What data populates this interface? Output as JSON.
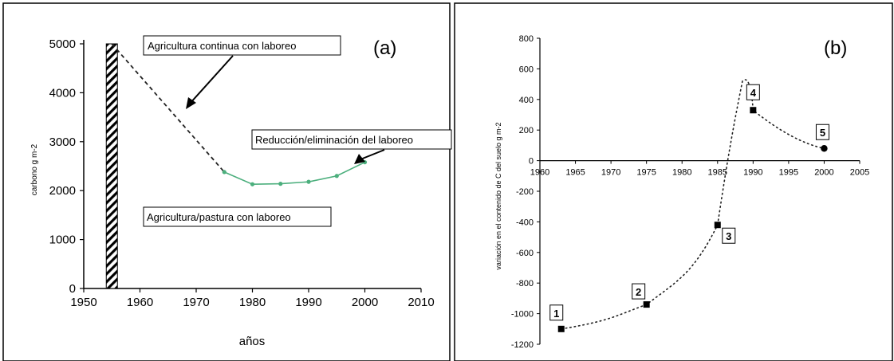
{
  "chart_data": [
    {
      "panel": "(a)",
      "type": "line",
      "xlabel": "años",
      "ylabel": "carbono g m-2",
      "xlim": [
        1950,
        2010
      ],
      "ylim": [
        0,
        5000
      ],
      "xticks": [
        "1950",
        "1960",
        "1970",
        "1980",
        "1990",
        "2000",
        "2010"
      ],
      "yticks": [
        "0",
        "1000",
        "2000",
        "3000",
        "4000",
        "5000"
      ],
      "bar": {
        "x": 1955,
        "value": 5000,
        "pattern": "diagonal-hatch"
      },
      "series": [
        {
          "style": "dashed",
          "color": "#222222",
          "x": [
            1955,
            1975
          ],
          "y": [
            5000,
            2380
          ]
        },
        {
          "style": "solid",
          "color": "#4caf7d",
          "x": [
            1975,
            1980,
            1985,
            1990,
            1995,
            2000
          ],
          "y": [
            2380,
            2130,
            2140,
            2180,
            2300,
            2580
          ]
        }
      ],
      "annotations": [
        {
          "text": "Agricultura continua con laboreo"
        },
        {
          "text": "Reducción/eliminación del laboreo"
        },
        {
          "text": "Agricultura/pastura con laboreo"
        }
      ]
    },
    {
      "panel": "(b)",
      "type": "scatter",
      "xlabel": "",
      "ylabel": "variación en el contenido de C del suelo g m-2",
      "xlim": [
        1960,
        2005
      ],
      "ylim": [
        -1200,
        800
      ],
      "xticks": [
        "1960",
        "1965",
        "1970",
        "1975",
        "1980",
        "1985",
        "1990",
        "1995",
        "2000",
        "2005"
      ],
      "yticks": [
        "800",
        "600",
        "400",
        "200",
        "0",
        "-200",
        "-400",
        "-600",
        "-800",
        "-1000",
        "-1200"
      ],
      "points": [
        {
          "label": "1",
          "x": 1963,
          "y": -1100
        },
        {
          "label": "2",
          "x": 1975,
          "y": -940
        },
        {
          "label": "3",
          "x": 1985,
          "y": -420
        },
        {
          "label": "4",
          "x": 1990,
          "y": 330
        },
        {
          "label": "5",
          "x": 2000,
          "y": 80
        }
      ],
      "trend": "dotted"
    }
  ],
  "colors": {
    "green_line": "#4caf7d",
    "axis": "#000000"
  }
}
